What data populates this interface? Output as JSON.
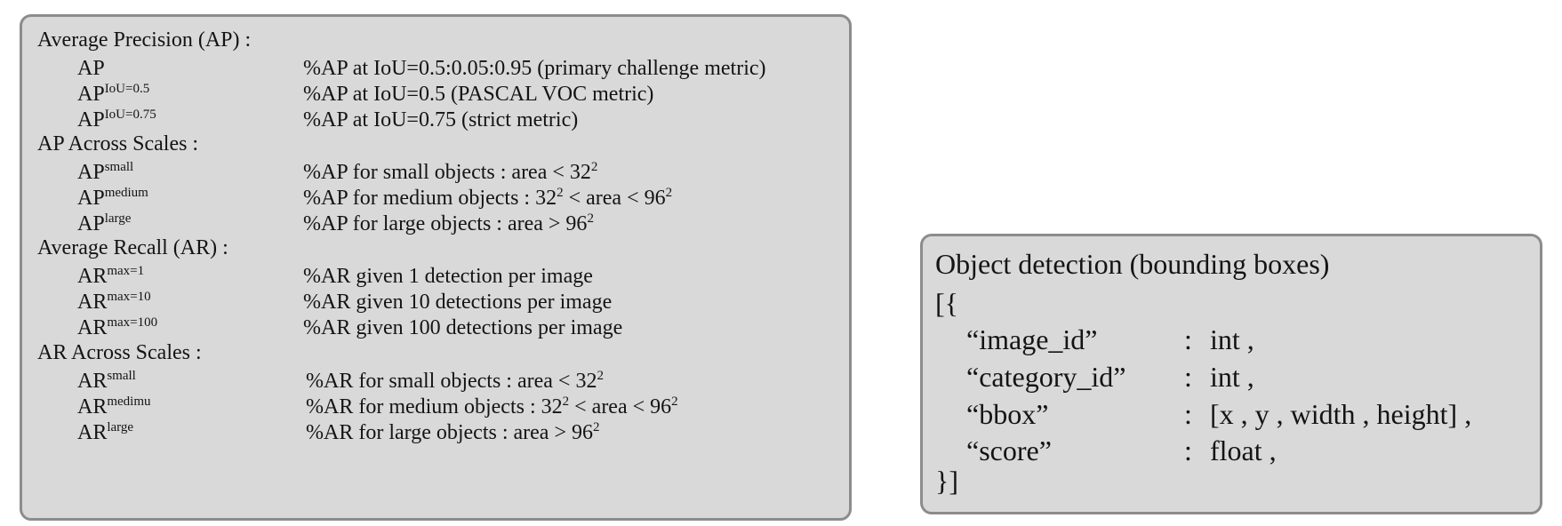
{
  "metrics": {
    "sections": [
      {
        "title": "Average Precision (AP) :",
        "rows": [
          {
            "base": "AP",
            "sup": "",
            "desc": "%AP at IoU=0.5:0.05:0.95 (primary challenge metric)"
          },
          {
            "base": "AP",
            "sup": "IoU=0.5",
            "desc": "%AP at IoU=0.5 (PASCAL VOC metric)"
          },
          {
            "base": "AP",
            "sup": "IoU=0.75",
            "desc": "%AP at IoU=0.75 (strict metric)"
          }
        ]
      },
      {
        "title": "AP Across Scales :",
        "rows": [
          {
            "base": "AP",
            "sup": "small",
            "desc": "%AP for small objects : area < 32",
            "desc_parts": [
              "%AP for small objects : area < 32",
              "2",
              ""
            ]
          },
          {
            "base": "AP",
            "sup": "medium",
            "desc": "%AP for medium objects : 32 < area < 96",
            "desc_parts": [
              "%AP for medium objects : 32",
              "2",
              " < area < 96",
              "2"
            ]
          },
          {
            "base": "AP",
            "sup": "large",
            "desc": "%AP for large objects : area > 96",
            "desc_parts": [
              "%AP for large objects : area > 96",
              "2",
              ""
            ]
          }
        ]
      },
      {
        "title": "Average Recall (AR) :",
        "rows": [
          {
            "base": "AR",
            "sup": "max=1",
            "desc": "%AR given 1 detection per image"
          },
          {
            "base": "AR",
            "sup": "max=10",
            "desc": "%AR given 10 detections per image"
          },
          {
            "base": "AR",
            "sup": "max=100",
            "desc": "%AR given 100 detections per image"
          }
        ]
      },
      {
        "title": "AR Across Scales :",
        "rows": [
          {
            "base": "AR",
            "sup": "small",
            "desc": "%AR for small objects : area < 32",
            "desc_parts": [
              "%AR for small objects : area < 32",
              "2",
              ""
            ]
          },
          {
            "base": "AR",
            "sup": "medimu",
            "desc": "%AR for medium objects : 32 < area < 96",
            "desc_parts": [
              "%AR for medium objects : 32",
              "2",
              " < area < 96",
              "2"
            ]
          },
          {
            "base": "AR",
            "sup": "large",
            "desc": "%AR for large objects : area > 96",
            "desc_parts": [
              "%AR for large objects : area > 96",
              "2",
              ""
            ]
          }
        ]
      }
    ]
  },
  "format": {
    "title": "Object detection (bounding boxes)",
    "open": "[{",
    "close": "}]",
    "fields": [
      {
        "key": "“image_id”",
        "colon": ":",
        "type": "int ,"
      },
      {
        "key": "“category_id”",
        "colon": ":",
        "type": "int ,"
      },
      {
        "key": "“bbox”",
        "colon": ":",
        "type": "[x , y , width , height] ,"
      },
      {
        "key": "“score”",
        "colon": ":",
        "type": "float ,"
      }
    ]
  },
  "colors": {
    "panel_fill": "#d9d9d9",
    "panel_border": "#8c8c8c",
    "text": "#141414"
  }
}
